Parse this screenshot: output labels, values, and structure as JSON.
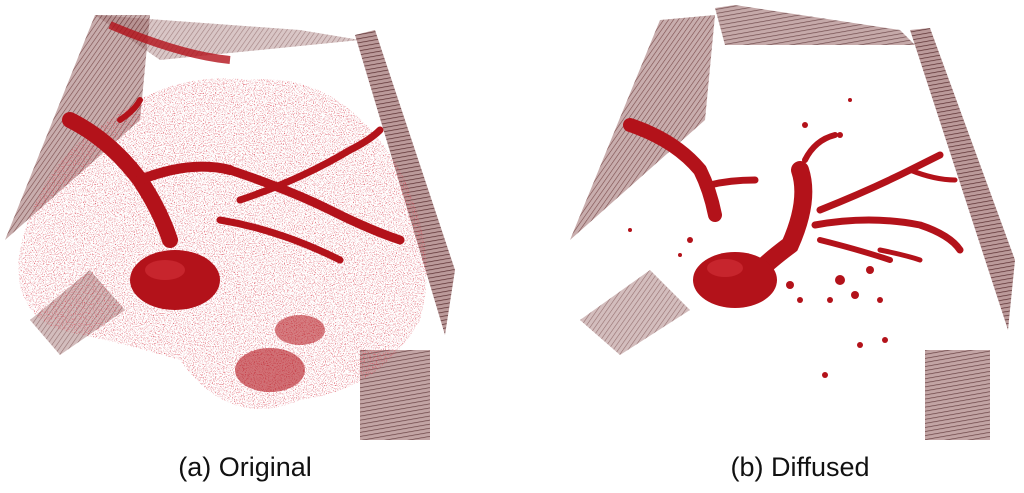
{
  "figure": {
    "panels": [
      {
        "caption": "(a) Original"
      },
      {
        "caption": "(b) Diffused"
      }
    ],
    "colors": {
      "vessel": "#b3121a",
      "vessel_dark": "#6e0b10",
      "plane": "#7a3a3a",
      "plane_dark": "#3e1012",
      "background": "#ffffff"
    }
  }
}
